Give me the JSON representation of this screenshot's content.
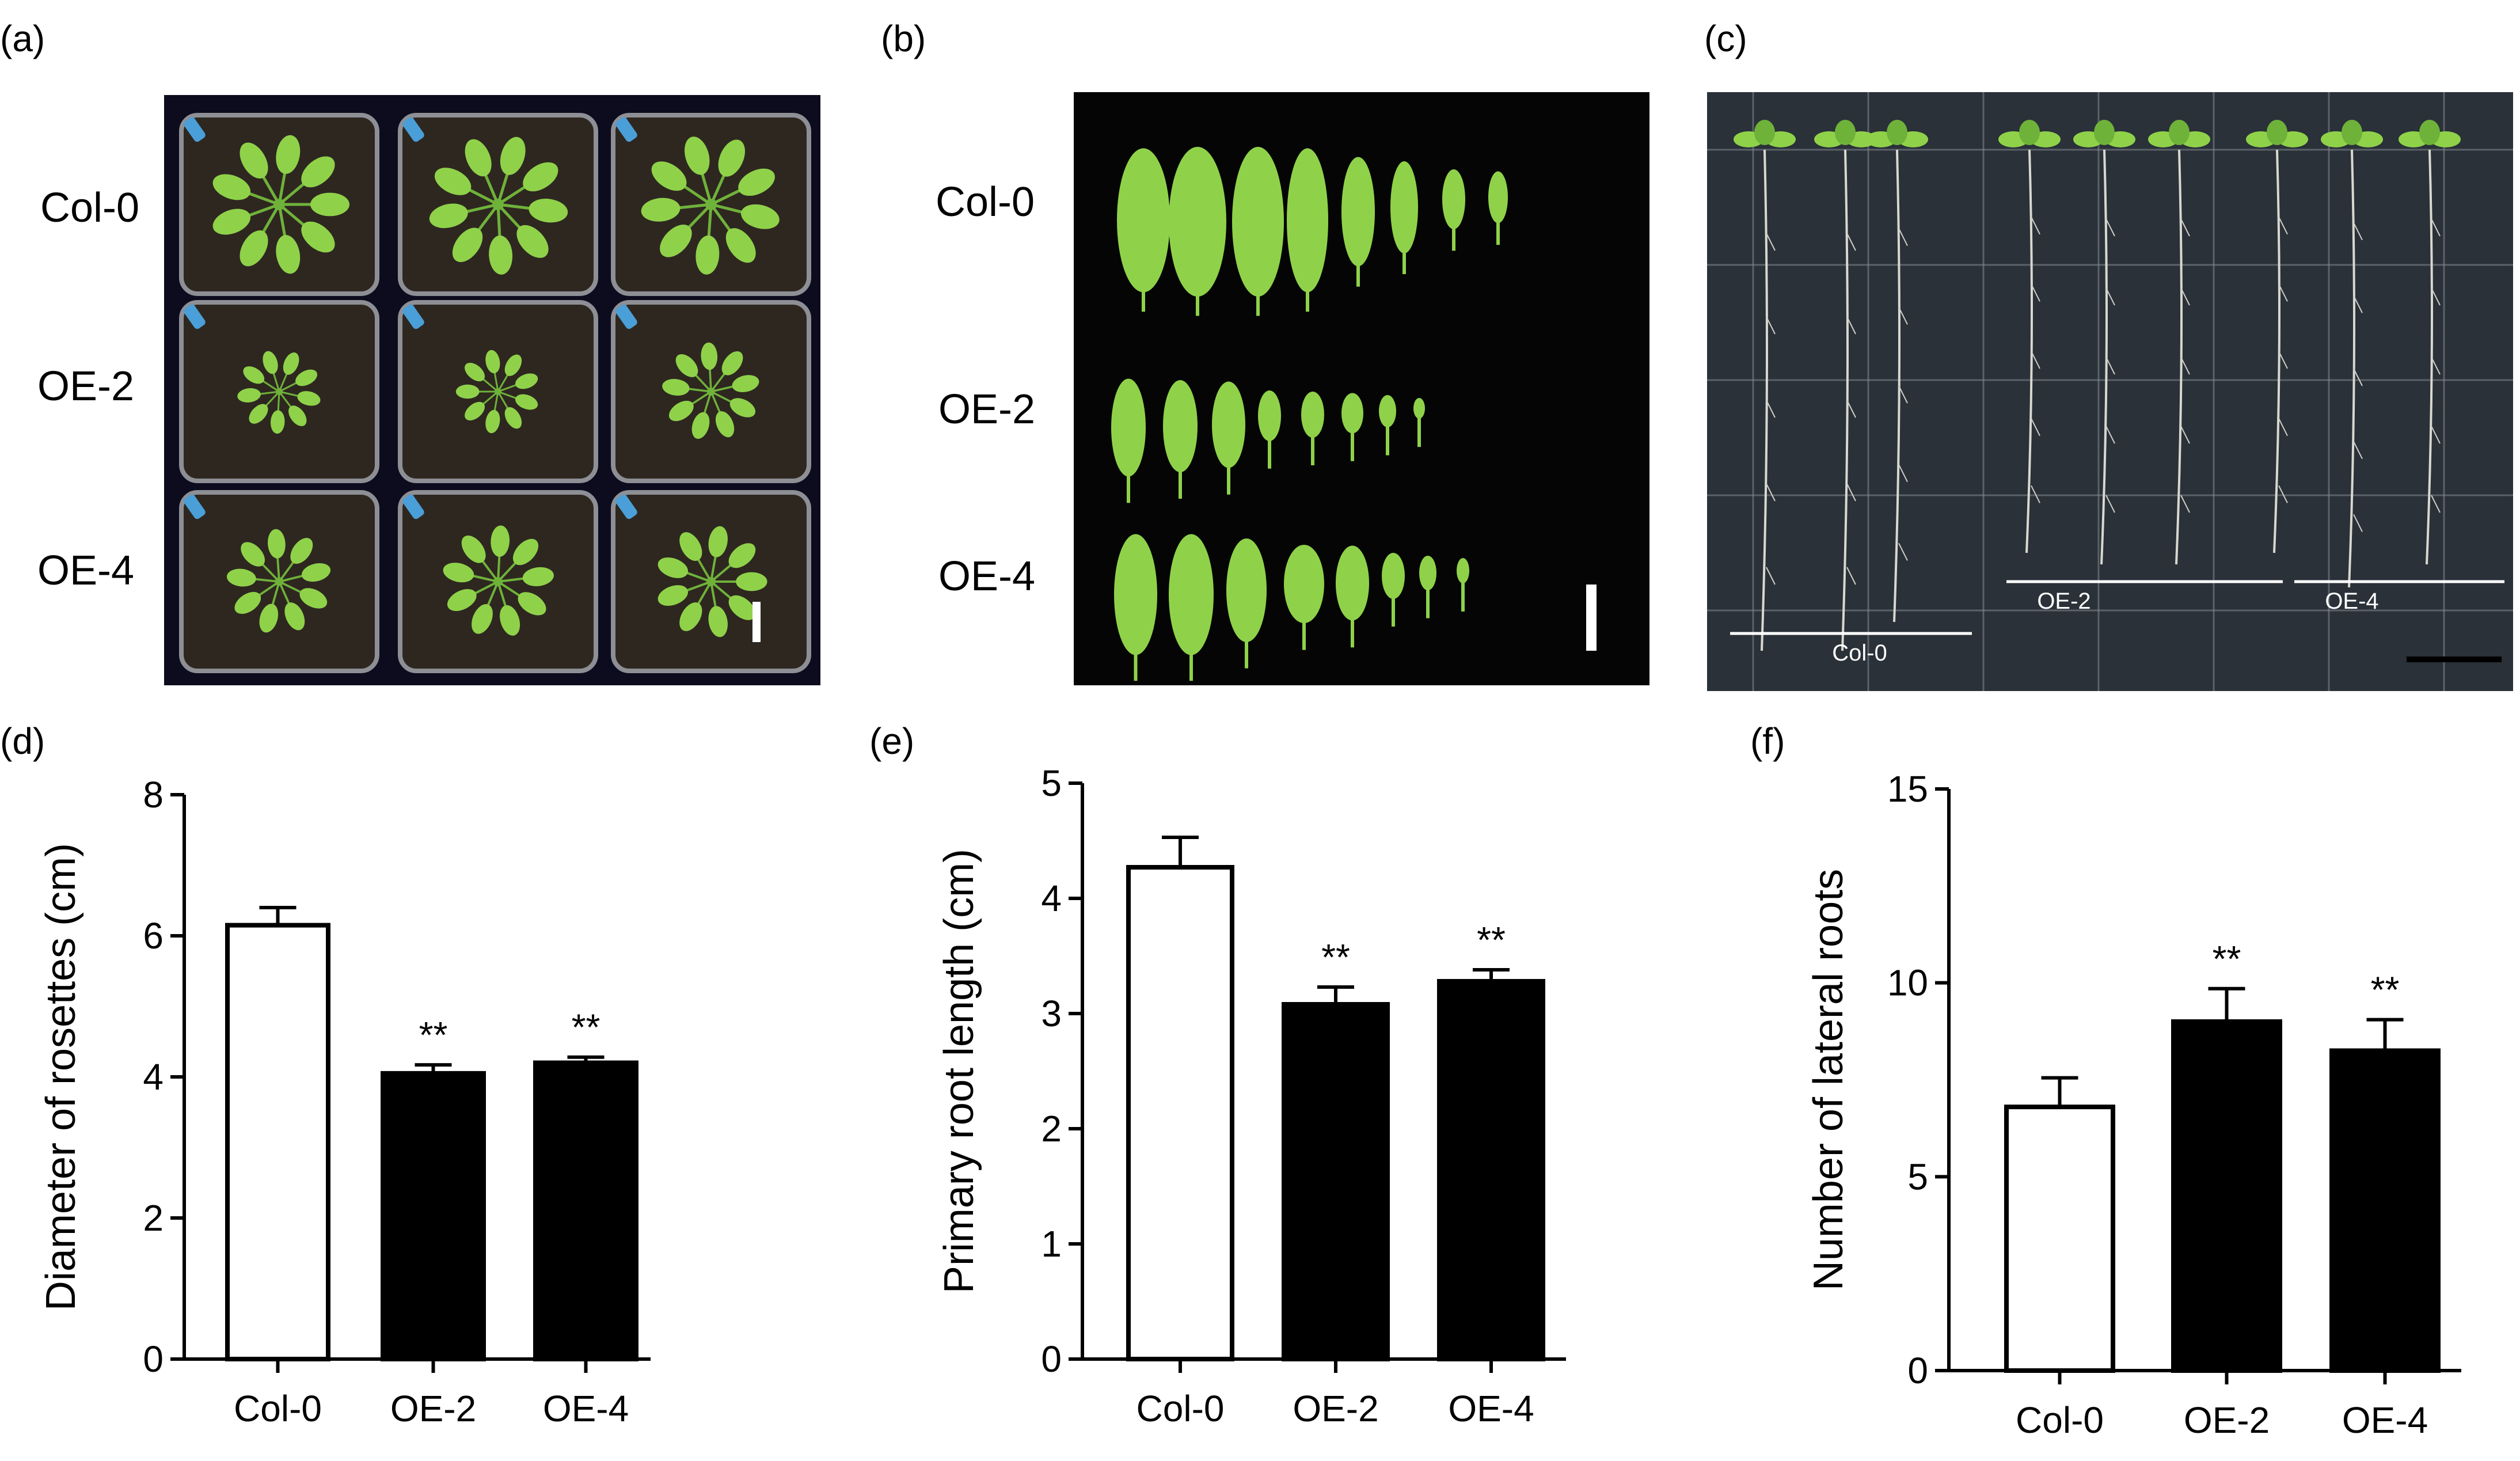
{
  "panels": {
    "a": {
      "letter": "(a)",
      "rows": [
        "Col-0",
        "OE-2",
        "OE-4"
      ]
    },
    "b": {
      "letter": "(b)",
      "rows": [
        "Col-0",
        "OE-2",
        "OE-4"
      ]
    },
    "c": {
      "letter": "(c)",
      "groups": [
        "Col-0",
        "OE-2",
        "OE-4"
      ]
    },
    "d": {
      "letter": "(d)"
    },
    "e": {
      "letter": "(e)"
    },
    "f": {
      "letter": "(f)"
    }
  },
  "colors": {
    "photo_bg": "#0c0c1e",
    "soil": "#2e2720",
    "leaf": "#8fd24a",
    "leaf_dark": "#6fb23a",
    "label_blue": "#4a9fd8",
    "plate": "#2a3138",
    "grid": "#8a9299",
    "bar_control": "#ffffff",
    "bar_treated": "#000000"
  },
  "chart_data": [
    {
      "id": "d",
      "type": "bar",
      "categories": [
        "Col-0",
        "OE-2",
        "OE-4"
      ],
      "values": [
        6.15,
        4.05,
        4.2
      ],
      "errors": [
        0.25,
        0.12,
        0.08
      ],
      "significance": [
        "",
        "**",
        "**"
      ],
      "ylabel": "Diameter of rosettes (cm)",
      "ylim": [
        0,
        8
      ],
      "yticks": [
        0,
        2,
        4,
        6,
        8
      ],
      "fills": [
        "#ffffff",
        "#000000",
        "#000000"
      ]
    },
    {
      "id": "e",
      "type": "bar",
      "categories": [
        "Col-0",
        "OE-2",
        "OE-4"
      ],
      "values": [
        4.27,
        3.08,
        3.28
      ],
      "errors": [
        0.26,
        0.15,
        0.1
      ],
      "significance": [
        "",
        "**",
        "**"
      ],
      "ylabel": "Primary root length (cm)",
      "ylim": [
        0,
        5
      ],
      "yticks": [
        0,
        1,
        2,
        3,
        4,
        5
      ],
      "fills": [
        "#ffffff",
        "#000000",
        "#000000"
      ]
    },
    {
      "id": "f",
      "type": "bar",
      "categories": [
        "Col-0",
        "OE-2",
        "OE-4"
      ],
      "values": [
        6.8,
        9.0,
        8.25
      ],
      "errors": [
        0.75,
        0.85,
        0.8
      ],
      "significance": [
        "",
        "**",
        "**"
      ],
      "ylabel": "Number of lateral roots",
      "ylim": [
        0,
        15
      ],
      "yticks": [
        0,
        5,
        10,
        15
      ],
      "fills": [
        "#ffffff",
        "#000000",
        "#000000"
      ]
    }
  ]
}
